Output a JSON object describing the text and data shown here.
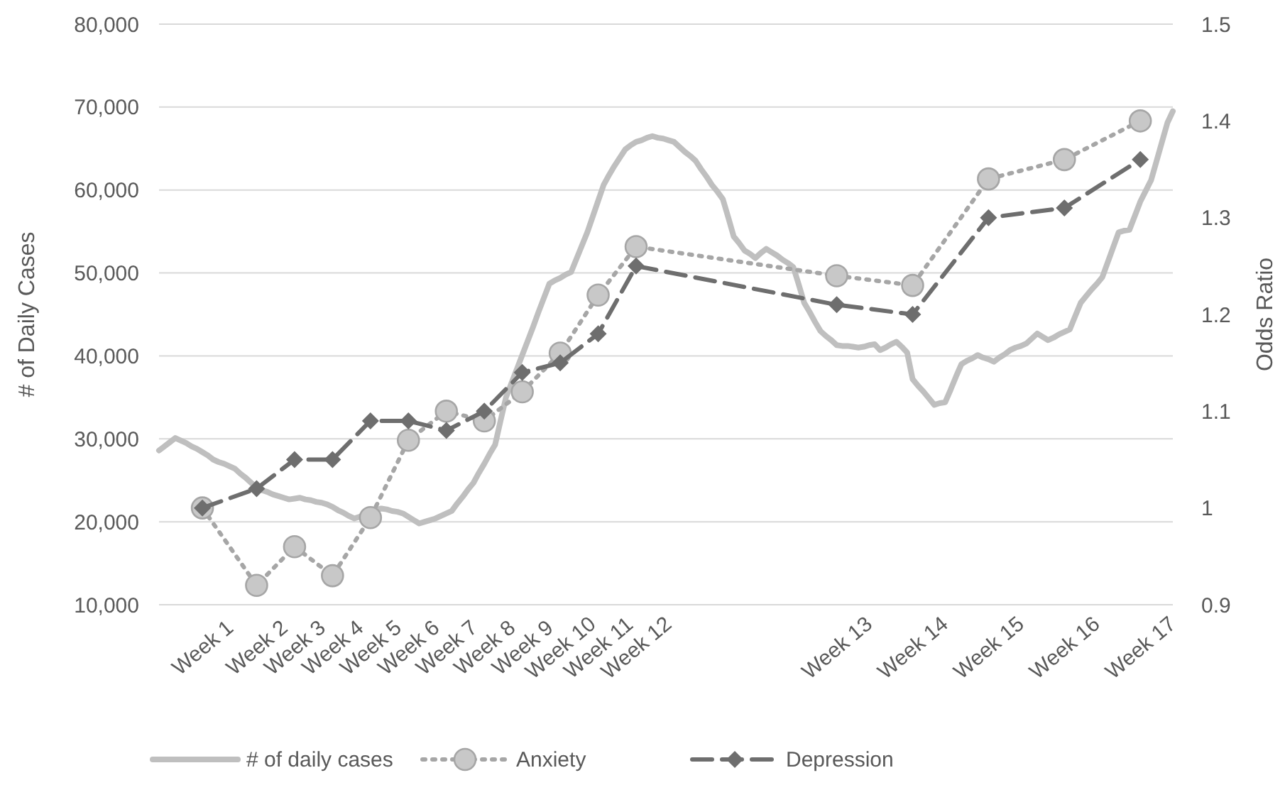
{
  "chart_data": {
    "type": "line",
    "ylabel": "# of Daily Cases",
    "y2label": "Odds Ratio",
    "categories": [
      null,
      null,
      null,
      null,
      null,
      null,
      null,
      null,
      "Week 1",
      null,
      null,
      null,
      null,
      null,
      null,
      null,
      null,
      null,
      "Week 2",
      null,
      null,
      null,
      null,
      null,
      null,
      "Week 3",
      null,
      null,
      null,
      null,
      null,
      null,
      "Week 4",
      null,
      null,
      null,
      null,
      null,
      null,
      "Week 5",
      null,
      null,
      null,
      null,
      null,
      null,
      "Week 6",
      null,
      null,
      null,
      null,
      null,
      null,
      "Week 7",
      null,
      null,
      null,
      null,
      null,
      null,
      "Week 8",
      null,
      null,
      null,
      null,
      null,
      null,
      "Week 9",
      null,
      null,
      null,
      null,
      null,
      null,
      "Week 10",
      null,
      null,
      null,
      null,
      null,
      null,
      "Week 11",
      null,
      null,
      null,
      null,
      null,
      null,
      "Week 12",
      null,
      null,
      null,
      null,
      null,
      null,
      null,
      null,
      null,
      null,
      null,
      null,
      null,
      null,
      null,
      null,
      null,
      null,
      null,
      null,
      null,
      null,
      null,
      null,
      null,
      null,
      null,
      null,
      null,
      null,
      null,
      null,
      null,
      null,
      null,
      null,
      "Week 13",
      null,
      null,
      null,
      null,
      null,
      null,
      null,
      null,
      null,
      null,
      null,
      null,
      null,
      "Week 14",
      null,
      null,
      null,
      null,
      null,
      null,
      null,
      null,
      null,
      null,
      null,
      null,
      null,
      "Week 15",
      null,
      null,
      null,
      null,
      null,
      null,
      null,
      null,
      null,
      null,
      null,
      null,
      null,
      "Week 16",
      null,
      null,
      null,
      null,
      null,
      null,
      null,
      null,
      null,
      null,
      null,
      null,
      null,
      "Week 17",
      null,
      null,
      null,
      null,
      null,
      null
    ],
    "ylim": [
      10000,
      80000
    ],
    "yticks": [
      {
        "value": 10000,
        "label": "10,000"
      },
      {
        "value": 20000,
        "label": "20,000"
      },
      {
        "value": 30000,
        "label": "30,000"
      },
      {
        "value": 40000,
        "label": "40,000"
      },
      {
        "value": 50000,
        "label": "50,000"
      },
      {
        "value": 60000,
        "label": "60,000"
      },
      {
        "value": 70000,
        "label": "70,000"
      },
      {
        "value": 80000,
        "label": "80,000"
      }
    ],
    "y2lim": [
      0.9,
      1.5
    ],
    "y2ticks": [
      0.9,
      1,
      1.1,
      1.2,
      1.3,
      1.4,
      1.5
    ],
    "grid": "y",
    "legend": "bottom",
    "series": [
      {
        "name": "# of daily cases",
        "color": "#bfbfbf",
        "marker": "none",
        "line_style": "solid",
        "values": [
          28600,
          29100,
          29600,
          30100,
          29800,
          29500,
          29100,
          28800,
          28400,
          28000,
          27500,
          27200,
          27000,
          26700,
          26400,
          25800,
          25300,
          24700,
          24100,
          23800,
          23600,
          23300,
          23100,
          22900,
          22700,
          22800,
          22900,
          22700,
          22600,
          22400,
          22300,
          22100,
          21800,
          21400,
          21100,
          20700,
          20400,
          20600,
          20900,
          21100,
          21400,
          21600,
          21500,
          21300,
          21200,
          21000,
          20600,
          20200,
          19800,
          20000,
          20200,
          20400,
          20700,
          21000,
          21300,
          22200,
          23000,
          23900,
          24700,
          25900,
          27000,
          28200,
          29300,
          32200,
          35000,
          36700,
          38400,
          40100,
          41800,
          43500,
          45300,
          47000,
          48700,
          49100,
          49400,
          49800,
          50100,
          51700,
          53300,
          54900,
          56800,
          58700,
          60600,
          61800,
          62900,
          63900,
          64900,
          65400,
          65800,
          66000,
          66300,
          66500,
          66300,
          66200,
          66000,
          65800,
          65200,
          64600,
          64100,
          63500,
          62500,
          61600,
          60600,
          59800,
          58900,
          56700,
          54400,
          53600,
          52700,
          52300,
          51800,
          52400,
          52900,
          52500,
          52100,
          51600,
          51200,
          50700,
          48600,
          46400,
          45300,
          44100,
          43000,
          42400,
          41900,
          41300,
          41200,
          41200,
          41100,
          41000,
          41100,
          41300,
          41400,
          40700,
          41000,
          41400,
          41700,
          41100,
          40400,
          37200,
          36400,
          35700,
          34900,
          34100,
          34300,
          34400,
          35900,
          37500,
          39000,
          39400,
          39700,
          40100,
          39800,
          39600,
          39300,
          39800,
          40200,
          40700,
          41000,
          41200,
          41500,
          42100,
          42700,
          42300,
          41900,
          42200,
          42600,
          42900,
          43200,
          44800,
          46400,
          47200,
          48000,
          48700,
          49500,
          51300,
          53100,
          54900,
          55100,
          55200,
          56900,
          58600,
          59900,
          61200,
          63500,
          65800,
          68100,
          69500
        ]
      },
      {
        "name": "Anxiety",
        "color": "#a6a6a6",
        "marker": "circle",
        "line_style": "dotted",
        "axis": "y2",
        "x": [
          "Week 1",
          "Week 2",
          "Week 3",
          "Week 4",
          "Week 5",
          "Week 6",
          "Week 7",
          "Week 8",
          "Week 9",
          "Week 10",
          "Week 11",
          "Week 12",
          "Week 13",
          "Week 14",
          "Week 15",
          "Week 16",
          "Week 17"
        ],
        "values": [
          1.0,
          0.92,
          0.96,
          0.93,
          0.99,
          1.07,
          1.1,
          1.09,
          1.12,
          1.16,
          1.22,
          1.27,
          1.24,
          1.23,
          1.34,
          1.36,
          1.4
        ]
      },
      {
        "name": "Depression",
        "color": "#6e6e6e",
        "marker": "diamond",
        "line_style": "dashed",
        "axis": "y2",
        "x": [
          "Week 1",
          "Week 2",
          "Week 3",
          "Week 4",
          "Week 5",
          "Week 6",
          "Week 7",
          "Week 8",
          "Week 9",
          "Week 10",
          "Week 11",
          "Week 12",
          "Week 13",
          "Week 14",
          "Week 15",
          "Week 16",
          "Week 17"
        ],
        "values": [
          1.0,
          1.02,
          1.05,
          1.05,
          1.09,
          1.09,
          1.08,
          1.1,
          1.14,
          1.15,
          1.18,
          1.25,
          1.21,
          1.2,
          1.3,
          1.31,
          1.36
        ]
      }
    ]
  }
}
